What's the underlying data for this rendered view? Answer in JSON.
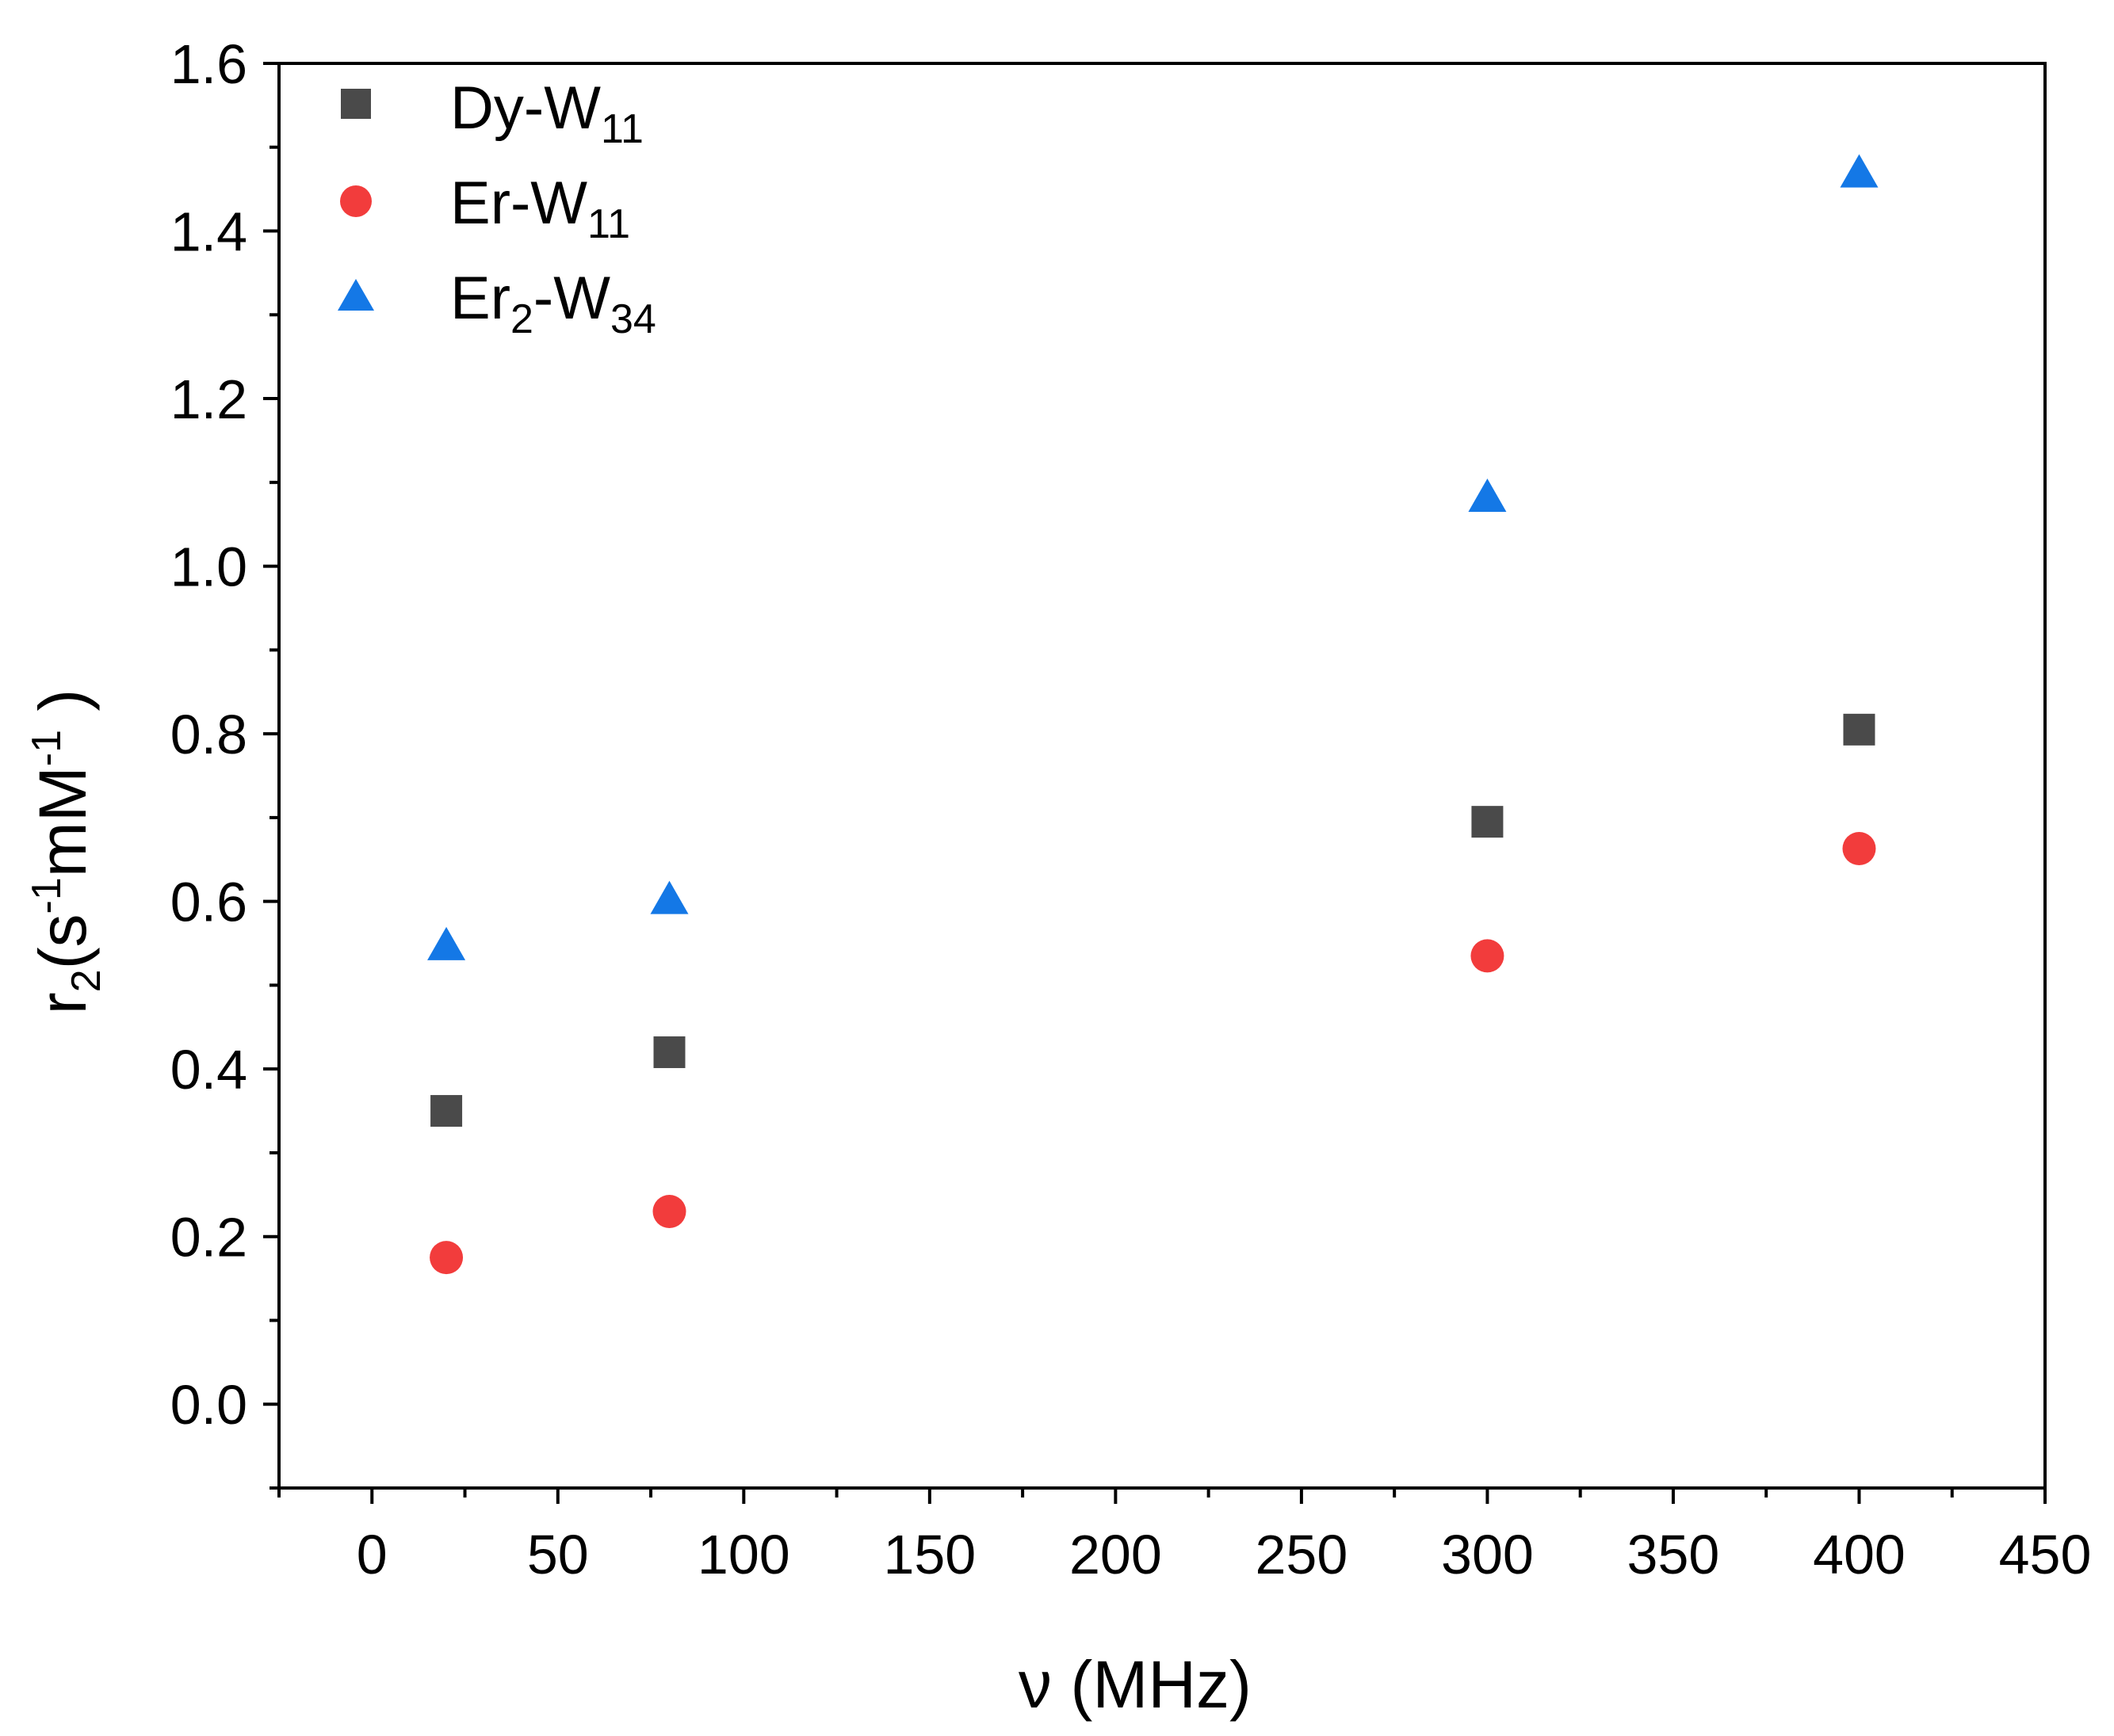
{
  "chart_data": {
    "type": "scatter",
    "title": "",
    "xlabel": "ν (MHz)",
    "ylabel": {
      "base": "r",
      "sub": "2",
      "rest_a": "(s",
      "sup_a": "-1",
      "rest_b": "mM",
      "sup_b": "-1",
      "close": " )"
    },
    "xlim": [
      -25,
      450
    ],
    "ylim": [
      -0.1,
      1.6
    ],
    "xticks": [
      0,
      50,
      100,
      150,
      200,
      250,
      300,
      350,
      400,
      450
    ],
    "yticks": [
      0.0,
      0.2,
      0.4,
      0.6,
      0.8,
      1.0,
      1.2,
      1.4,
      1.6
    ],
    "xtick_labels": [
      "0",
      "50",
      "100",
      "150",
      "200",
      "250",
      "300",
      "350",
      "400",
      "450"
    ],
    "ytick_labels": [
      "0.0",
      "0.2",
      "0.4",
      "0.6",
      "0.8",
      "1.0",
      "1.2",
      "1.4",
      "1.6"
    ],
    "grid": false,
    "legend_position": "top-left",
    "series": [
      {
        "name": "Dy-W11",
        "label_base": "Dy-W",
        "label_sub": "11",
        "marker": "square",
        "color": "#4a4a4a",
        "x": [
          20,
          80,
          300,
          400
        ],
        "y": [
          0.35,
          0.42,
          0.695,
          0.805
        ]
      },
      {
        "name": "Er-W11",
        "label_base": "Er-W",
        "label_sub": "11",
        "marker": "circle",
        "color": "#f23c3c",
        "x": [
          20,
          80,
          300,
          400
        ],
        "y": [
          0.175,
          0.23,
          0.535,
          0.663
        ]
      },
      {
        "name": "Er2-W34",
        "label_base": "Er",
        "label_sub": "2",
        "label_mid": "-W",
        "label_sub2": "34",
        "marker": "triangle",
        "color": "#1478e6",
        "x": [
          20,
          80,
          300,
          400
        ],
        "y": [
          0.545,
          0.6,
          1.08,
          1.467
        ]
      }
    ]
  }
}
